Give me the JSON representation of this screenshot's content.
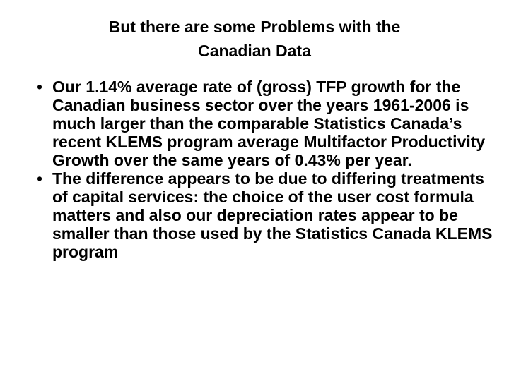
{
  "slide": {
    "title_lines": [
      "But there are some Problems with the",
      "Canadian Data"
    ],
    "bullet_symbol": "•",
    "bullets": [
      "Our 1.14% average rate of (gross) TFP growth for the Canadian business sector over the years 1961-2006 is much larger than the comparable Statistics Canada’s recent KLEMS program average Multifactor Productivity Growth over the same years of 0.43% per year.",
      "The difference appears to be due to differing treatments of capital services: the choice of the user cost formula matters and also our depreciation rates appear to be smaller than those used by the Statistics Canada KLEMS program"
    ]
  }
}
